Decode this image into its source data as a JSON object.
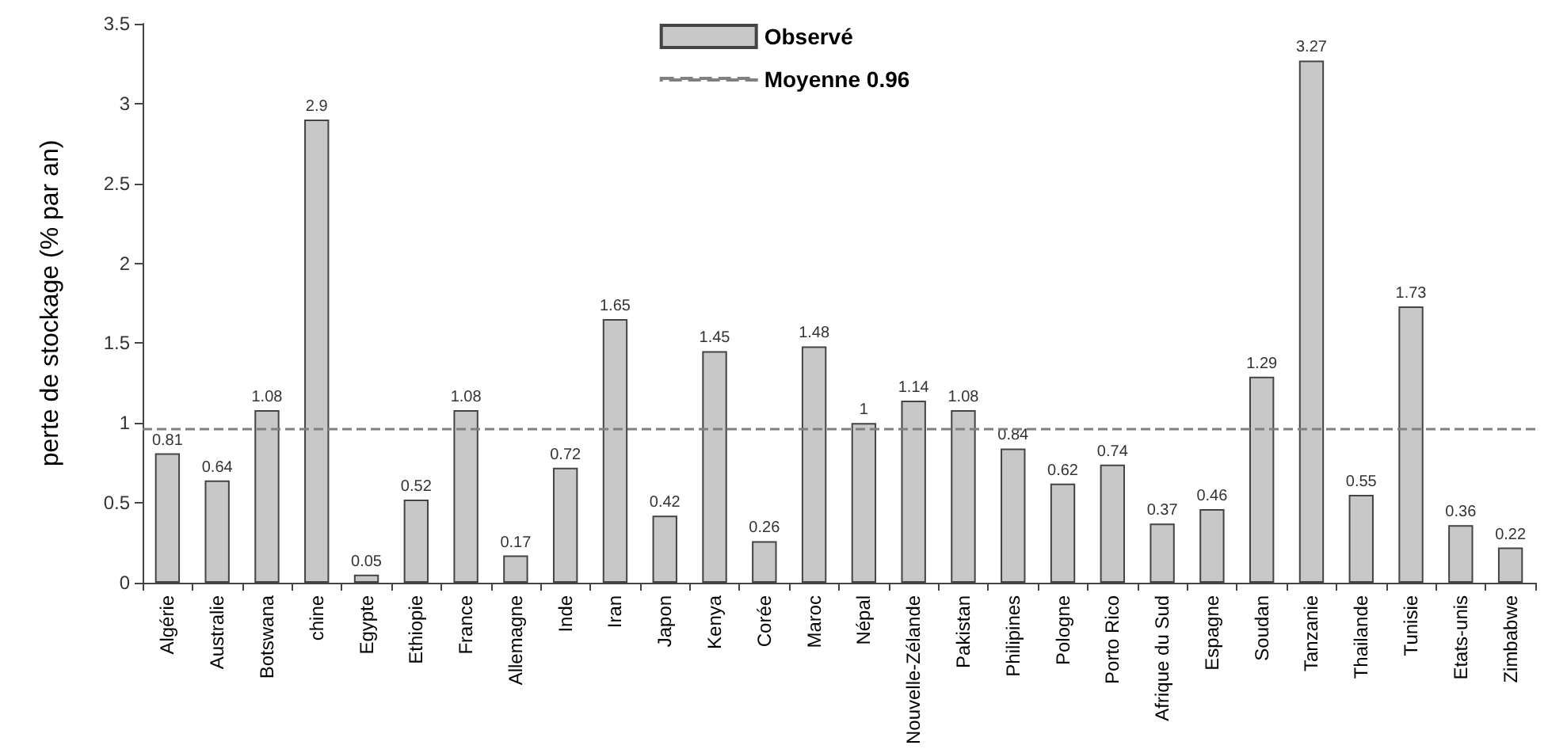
{
  "chart_data": {
    "type": "bar",
    "ylabel": "perte de stockage (% par an)",
    "categories": [
      "Algérie",
      "Australie",
      "Botswana",
      "chine",
      "Egypte",
      "Ethiopie",
      "France",
      "Allemagne",
      "Inde",
      "Iran",
      "Japon",
      "Kenya",
      "Corée",
      "Maroc",
      "Népal",
      "Nouvelle-Zélande",
      "Pakistan",
      "Philipines",
      "Pologne",
      "Porto Rico",
      "Afrique du Sud",
      "Espagne",
      "Soudan",
      "Tanzanie",
      "Thailande",
      "Tunisie",
      "Etats-unis",
      "Zimbabwe"
    ],
    "series": [
      {
        "name": "Observé",
        "color": "#c8c8c8",
        "values": [
          0.81,
          0.64,
          1.08,
          2.9,
          0.05,
          0.52,
          1.08,
          0.17,
          0.72,
          1.65,
          0.42,
          1.45,
          0.26,
          1.48,
          1,
          1.14,
          1.08,
          0.84,
          0.62,
          0.74,
          0.37,
          0.46,
          1.29,
          3.27,
          0.55,
          1.73,
          0.36,
          0.22
        ]
      }
    ],
    "ylim": [
      0,
      3.5
    ],
    "yticks": [
      0,
      0.5,
      1,
      1.5,
      2,
      2.5,
      3,
      3.5
    ],
    "ref_lines": [
      {
        "axis": "y",
        "value": 0.96,
        "label": "Moyenne 0.96",
        "color": "#808080",
        "line_style": "dashed"
      }
    ],
    "data_labels": true,
    "grid": false,
    "legend": "top"
  }
}
